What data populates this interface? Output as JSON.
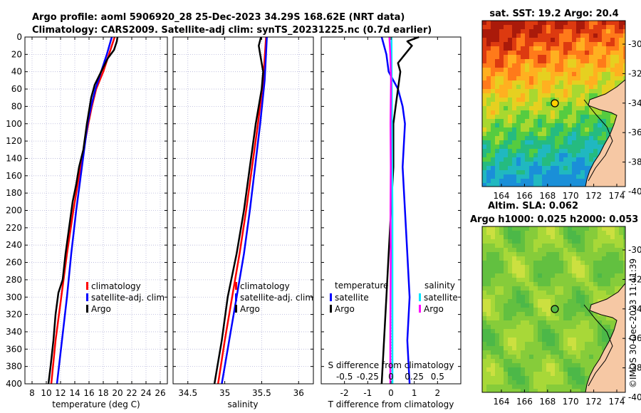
{
  "header": {
    "line1": "Argo profile: aoml 5906920_28 25-Dec-2023 34.29S 168.62E (NRT data)",
    "line2": "Climatology: CARS2009. Satellite-adj clim: synTS_20231225.nc (0.7d earlier)"
  },
  "colors": {
    "climatology": "#ff0000",
    "satellite": "#0000ff",
    "argo": "#000000",
    "s_satellite": "#00e5ff",
    "s_argo": "#ff00ff"
  },
  "chart_data": [
    {
      "type": "line",
      "id": "temperature",
      "xlabel": "temperature (deg C)",
      "ylabel": "",
      "xlim": [
        7,
        27
      ],
      "ylim": [
        400,
        0
      ],
      "xticks": [
        8,
        10,
        12,
        14,
        16,
        18,
        20,
        22,
        24,
        26
      ],
      "yticks": [
        0,
        20,
        40,
        60,
        80,
        100,
        120,
        140,
        160,
        180,
        200,
        220,
        240,
        260,
        280,
        300,
        320,
        340,
        360,
        380,
        400
      ],
      "grid": true,
      "legend": [
        "climatology",
        "satellite-adj. clim",
        "Argo"
      ],
      "series": [
        {
          "name": "climatology",
          "color": "#ff0000",
          "depth": [
            0,
            20,
            40,
            60,
            80,
            100,
            150,
            200,
            250,
            300,
            350,
            400
          ],
          "values": [
            19.6,
            18.8,
            18.0,
            17.0,
            16.4,
            15.9,
            14.8,
            13.8,
            12.9,
            12.1,
            11.3,
            10.7
          ]
        },
        {
          "name": "satellite-adj. clim",
          "color": "#0000ff",
          "depth": [
            0,
            20,
            40,
            60,
            80,
            100,
            150,
            200,
            250,
            300,
            350,
            400
          ],
          "values": [
            19.2,
            18.5,
            17.7,
            16.9,
            16.3,
            15.8,
            15.0,
            14.2,
            13.5,
            12.9,
            12.2,
            11.5
          ]
        },
        {
          "name": "Argo",
          "color": "#000000",
          "depth": [
            0,
            5,
            15,
            25,
            35,
            45,
            55,
            70,
            85,
            100,
            130,
            150,
            170,
            190,
            220,
            250,
            280,
            295,
            320,
            350,
            380,
            400
          ],
          "values": [
            20.0,
            19.9,
            19.5,
            18.6,
            18.0,
            17.4,
            16.8,
            16.3,
            16.0,
            15.7,
            15.2,
            14.6,
            14.2,
            13.7,
            13.2,
            12.7,
            12.3,
            11.7,
            11.3,
            11.0,
            10.6,
            10.3
          ]
        }
      ]
    },
    {
      "type": "line",
      "id": "salinity",
      "xlabel": "salinity",
      "xlim": [
        34.3,
        36.2
      ],
      "ylim": [
        400,
        0
      ],
      "xticks": [
        34.5,
        35,
        35.5,
        36
      ],
      "xticklabels": [
        "34.5",
        "35",
        "35.5",
        "36"
      ],
      "grid": true,
      "legend": [
        "climatology",
        "satellite-adj. clim",
        "Argo"
      ],
      "series": [
        {
          "name": "climatology",
          "color": "#ff0000",
          "depth": [
            0,
            50,
            100,
            150,
            200,
            250,
            300,
            350,
            400
          ],
          "values": [
            35.56,
            35.52,
            35.45,
            35.37,
            35.29,
            35.2,
            35.1,
            35.0,
            34.91
          ]
        },
        {
          "name": "satellite-adj. clim",
          "color": "#0000ff",
          "depth": [
            0,
            50,
            100,
            150,
            200,
            250,
            300,
            350,
            400
          ],
          "values": [
            35.57,
            35.54,
            35.48,
            35.41,
            35.34,
            35.26,
            35.16,
            35.06,
            34.96
          ]
        },
        {
          "name": "Argo",
          "color": "#000000",
          "depth": [
            0,
            10,
            20,
            40,
            60,
            100,
            150,
            200,
            250,
            300,
            350,
            380,
            400
          ],
          "values": [
            35.49,
            35.46,
            35.48,
            35.52,
            35.5,
            35.42,
            35.34,
            35.26,
            35.16,
            35.04,
            34.96,
            34.9,
            34.86
          ]
        }
      ]
    },
    {
      "type": "line",
      "id": "difference",
      "xlabel": "T difference from climatology",
      "top_xlabel": "S difference from climatology",
      "xlim": [
        -3,
        3
      ],
      "ylim": [
        400,
        0
      ],
      "xticks": [
        -2,
        -1,
        0,
        1,
        2
      ],
      "top_ticklabels": [
        "-0.5",
        "-0.25",
        "0",
        "0.25",
        "0.5"
      ],
      "legend_left_title": "temperature",
      "legend_right_title": "salinity",
      "legend_left": [
        "satellite",
        "Argo"
      ],
      "legend_right": [
        "satellite",
        "Argo"
      ],
      "series": [
        {
          "name": "T satellite",
          "color": "#0000ff",
          "depth": [
            0,
            20,
            40,
            60,
            80,
            100,
            150,
            200,
            250,
            300,
            350,
            400
          ],
          "values": [
            -0.4,
            -0.2,
            -0.1,
            0.3,
            0.5,
            0.6,
            0.5,
            0.6,
            0.7,
            0.8,
            0.7,
            0.8
          ]
        },
        {
          "name": "T Argo",
          "color": "#000000",
          "depth": [
            0,
            5,
            10,
            20,
            30,
            40,
            60,
            80,
            100,
            150,
            200,
            250,
            300,
            350,
            400
          ],
          "values": [
            1.2,
            0.7,
            0.9,
            0.6,
            0.3,
            0.4,
            0.3,
            0.2,
            0.1,
            0.1,
            0.0,
            -0.1,
            -0.2,
            -0.3,
            -0.4
          ]
        },
        {
          "name": "S satellite",
          "color": "#00e5ff",
          "depth": [
            0,
            100,
            200,
            300,
            400
          ],
          "values": [
            0.02,
            0.04,
            0.06,
            0.06,
            0.06
          ]
        },
        {
          "name": "S Argo",
          "color": "#ff00ff",
          "depth": [
            0,
            20,
            50,
            100,
            150,
            200,
            250,
            300,
            350,
            400
          ],
          "values": [
            -0.07,
            -0.03,
            0.0,
            -0.02,
            -0.01,
            -0.02,
            -0.01,
            -0.02,
            -0.03,
            -0.03
          ]
        }
      ]
    }
  ],
  "maps": {
    "sst": {
      "title": "sat. SST: 19.2 Argo: 20.4",
      "xticks": [
        "164",
        "166",
        "168",
        "170",
        "172",
        "174"
      ],
      "yticks": [
        "-30",
        "-32",
        "-34",
        "-36",
        "-38",
        "-40"
      ],
      "colors": [
        "#aa1a0a",
        "#dd3a10",
        "#ff7a1a",
        "#ffb020",
        "#e6d020",
        "#a8d830",
        "#55cc40",
        "#25bb80",
        "#20b8c0",
        "#1a8fd8"
      ]
    },
    "sla": {
      "title1": "Altim. SLA: 0.062",
      "title2": "Argo h1000: 0.025 h2000: 0.053",
      "xticks": [
        "164",
        "166",
        "168",
        "170",
        "172",
        "174"
      ],
      "yticks": [
        "-30",
        "-32",
        "-34",
        "-36",
        "-38",
        "-40"
      ],
      "colors": [
        "#4cb848",
        "#62c040",
        "#86cc3a",
        "#a8d838",
        "#cce040"
      ]
    }
  },
  "credit": "©IMOS 30-Dec-2023 11:41:39"
}
